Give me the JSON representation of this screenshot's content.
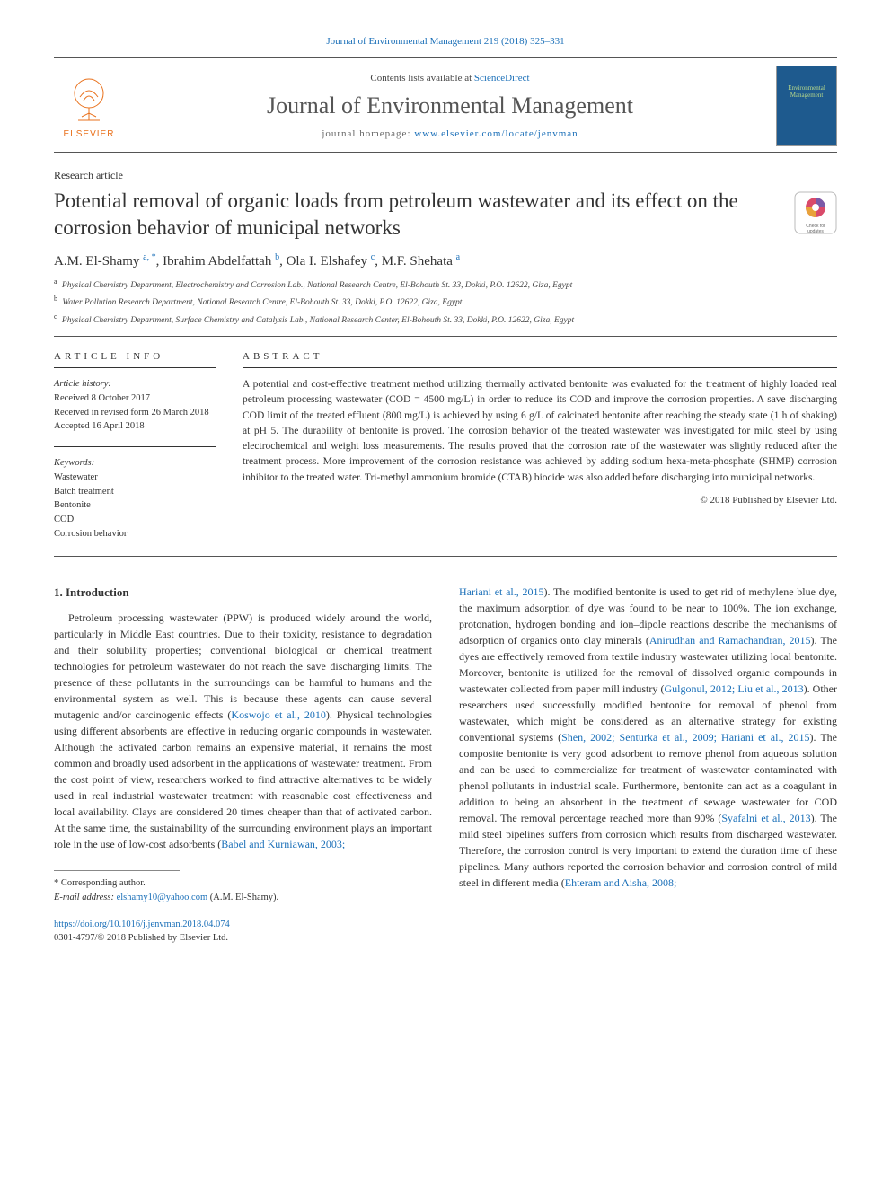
{
  "top_citation": {
    "text": "Journal of Environmental Management 219 (2018) 325–331",
    "link_color": "#1a6fb8"
  },
  "header": {
    "contents_prefix": "Contents lists available at ",
    "contents_link": "ScienceDirect",
    "journal_name": "Journal of Environmental Management",
    "homepage_label": "journal homepage: ",
    "homepage_url": "www.elsevier.com/locate/jenvman",
    "publisher_name": "ELSEVIER",
    "cover_text": "Environmental Management"
  },
  "article": {
    "type": "Research article",
    "title": "Potential removal of organic loads from petroleum wastewater and its effect on the corrosion behavior of municipal networks",
    "updates_label": "Check for updates",
    "authors_html": "A.M. El-Shamy <sup>a, *</sup>, Ibrahim Abdelfattah <sup>b</sup>, Ola I. Elshafey <sup>c</sup>, M.F. Shehata <sup>a</sup>",
    "affiliations": [
      {
        "sup": "a",
        "text": "Physical Chemistry Department, Electrochemistry and Corrosion Lab., National Research Centre, El-Bohouth St. 33, Dokki, P.O. 12622, Giza, Egypt"
      },
      {
        "sup": "b",
        "text": "Water Pollution Research Department, National Research Centre, El-Bohouth St. 33, Dokki, P.O. 12622, Giza, Egypt"
      },
      {
        "sup": "c",
        "text": "Physical Chemistry Department, Surface Chemistry and Catalysis Lab., National Research Center, El-Bohouth St. 33, Dokki, P.O. 12622, Giza, Egypt"
      }
    ]
  },
  "info": {
    "heading": "ARTICLE INFO",
    "history_label": "Article history:",
    "received": "Received 8 October 2017",
    "revised": "Received in revised form 26 March 2018",
    "accepted": "Accepted 16 April 2018",
    "keywords_label": "Keywords:",
    "keywords": [
      "Wastewater",
      "Batch treatment",
      "Bentonite",
      "COD",
      "Corrosion behavior"
    ]
  },
  "abstract": {
    "heading": "ABSTRACT",
    "text": "A potential and cost-effective treatment method utilizing thermally activated bentonite was evaluated for the treatment of highly loaded real petroleum processing wastewater (COD = 4500 mg/L) in order to reduce its COD and improve the corrosion properties. A save discharging COD limit of the treated effluent (800 mg/L) is achieved by using 6 g/L of calcinated bentonite after reaching the steady state (1 h of shaking) at pH 5. The durability of bentonite is proved. The corrosion behavior of the treated wastewater was investigated for mild steel by using electrochemical and weight loss measurements. The results proved that the corrosion rate of the wastewater was slightly reduced after the treatment process. More improvement of the corrosion resistance was achieved by adding sodium hexa-meta-phosphate (SHMP) corrosion inhibitor to the treated water. Tri-methyl ammonium bromide (CTAB) biocide was also added before discharging into municipal networks.",
    "copyright": "© 2018 Published by Elsevier Ltd."
  },
  "body": {
    "intro_heading": "1. Introduction",
    "col1_para": "Petroleum processing wastewater (PPW) is produced widely around the world, particularly in Middle East countries. Due to their toxicity, resistance to degradation and their solubility properties; conventional biological or chemical treatment technologies for petroleum wastewater do not reach the save discharging limits. The presence of these pollutants in the surroundings can be harmful to humans and the environmental system as well. This is because these agents can cause several mutagenic and/or carcinogenic effects (",
    "col1_cite1": "Koswojo et al., 2010",
    "col1_para2": "). Physical technologies using different absorbents are effective in reducing organic compounds in wastewater. Although the activated carbon remains an expensive material, it remains the most common and broadly used adsorbent in the applications of wastewater treatment. From the cost point of view, researchers worked to find attractive alternatives to be widely used in real industrial wastewater treatment with reasonable cost effectiveness and local availability. Clays are considered 20 times cheaper than that of activated carbon. At the same time, the sustainability of the surrounding environment plays an important role in the use of low-cost adsorbents (",
    "col1_cite2": "Babel and Kurniawan, 2003;",
    "col2_cite1": "Hariani et al., 2015",
    "col2_para1": "). The modified bentonite is used to get rid of methylene blue dye, the maximum adsorption of dye was found to be near to 100%. The ion exchange, protonation, hydrogen bonding and ion–dipole reactions describe the mechanisms of adsorption of organics onto clay minerals (",
    "col2_cite2": "Anirudhan and Ramachandran, 2015",
    "col2_para2": "). The dyes are effectively removed from textile industry wastewater utilizing local bentonite. Moreover, bentonite is utilized for the removal of dissolved organic compounds in wastewater collected from paper mill industry (",
    "col2_cite3": "Gulgonul, 2012; Liu et al., 2013",
    "col2_para3": "). Other researchers used successfully modified bentonite for removal of phenol from wastewater, which might be considered as an alternative strategy for existing conventional systems (",
    "col2_cite4": "Shen, 2002; Senturka et al., 2009; Hariani et al., 2015",
    "col2_para4": "). The composite bentonite is very good adsorbent to remove phenol from aqueous solution and can be used to commercialize for treatment of wastewater contaminated with phenol pollutants in industrial scale. Furthermore, bentonite can act as a coagulant in addition to being an absorbent in the treatment of sewage wastewater for COD removal. The removal percentage reached more than 90% (",
    "col2_cite5": "Syafalni et al., 2013",
    "col2_para5": "). The mild steel pipelines suffers from corrosion which results from discharged wastewater. Therefore, the corrosion control is very important to extend the duration time of these pipelines. Many authors reported the corrosion behavior and corrosion control of mild steel in different media (",
    "col2_cite6": "Ehteram and Aisha, 2008;"
  },
  "footer": {
    "corr_label": "* Corresponding author.",
    "email_label": "E-mail address: ",
    "email": "elshamy10@yahoo.com",
    "email_suffix": " (A.M. El-Shamy).",
    "doi": "https://doi.org/10.1016/j.jenvman.2018.04.074",
    "issn_line": "0301-4797/© 2018 Published by Elsevier Ltd."
  },
  "colors": {
    "link": "#1a6fb8",
    "elsevier_orange": "#e9711c",
    "text": "#333333",
    "cover_bg": "#1e5a8e",
    "cover_text": "#b8d98a"
  }
}
